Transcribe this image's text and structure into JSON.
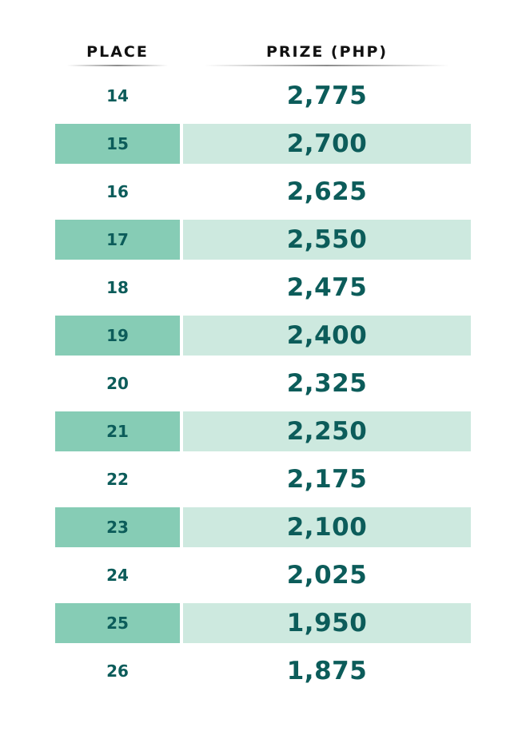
{
  "header": {
    "place": "PLACE",
    "prize": "PRIZE (PHP)"
  },
  "rows": [
    {
      "place": "14",
      "prize": "2,775"
    },
    {
      "place": "15",
      "prize": "2,700"
    },
    {
      "place": "16",
      "prize": "2,625"
    },
    {
      "place": "17",
      "prize": "2,550"
    },
    {
      "place": "18",
      "prize": "2,475"
    },
    {
      "place": "19",
      "prize": "2,400"
    },
    {
      "place": "20",
      "prize": "2,325"
    },
    {
      "place": "21",
      "prize": "2,250"
    },
    {
      "place": "22",
      "prize": "2,175"
    },
    {
      "place": "23",
      "prize": "2,100"
    },
    {
      "place": "24",
      "prize": "2,025"
    },
    {
      "place": "25",
      "prize": "1,950"
    },
    {
      "place": "26",
      "prize": "1,875"
    }
  ],
  "colors": {
    "text": "#0c5c5a",
    "place_shade": "#86ccb5",
    "prize_shade": "#cde9df"
  }
}
